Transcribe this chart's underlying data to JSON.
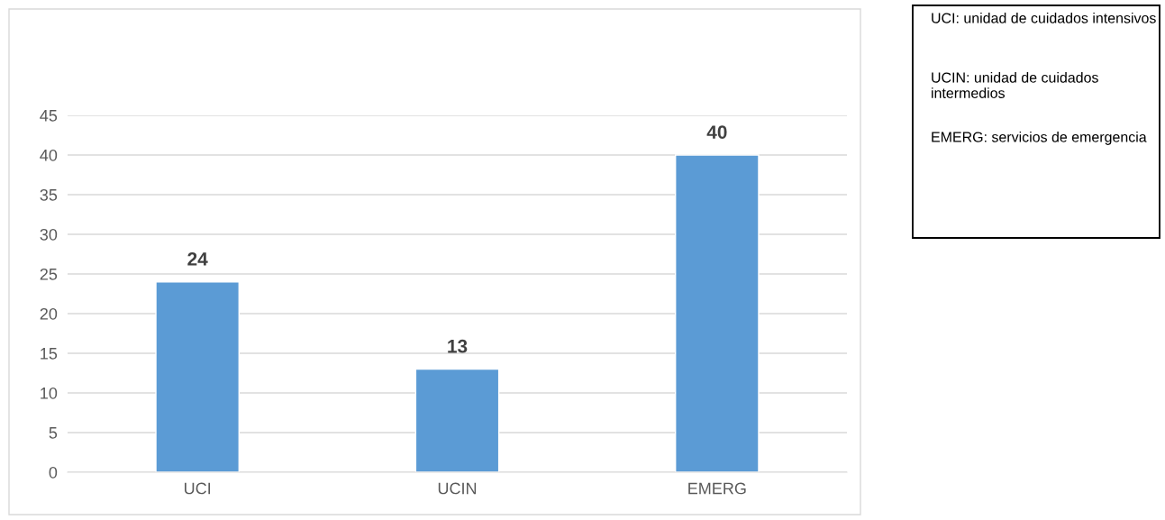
{
  "chart_data": {
    "type": "bar",
    "categories": [
      "UCI",
      "UCIN",
      "EMERG"
    ],
    "values": [
      24,
      13,
      40
    ],
    "color": "#5b9bd5",
    "ylim": [
      0,
      45
    ],
    "yticks": [
      0,
      5,
      10,
      15,
      20,
      25,
      30,
      35,
      40,
      45
    ],
    "grid": "y",
    "data_labels": true,
    "annotations": [
      "UCI: unidad de cuidados intensivos",
      "UCIN: unidad de cuidados intermedios",
      "EMERG: servicios de emergencia"
    ]
  }
}
